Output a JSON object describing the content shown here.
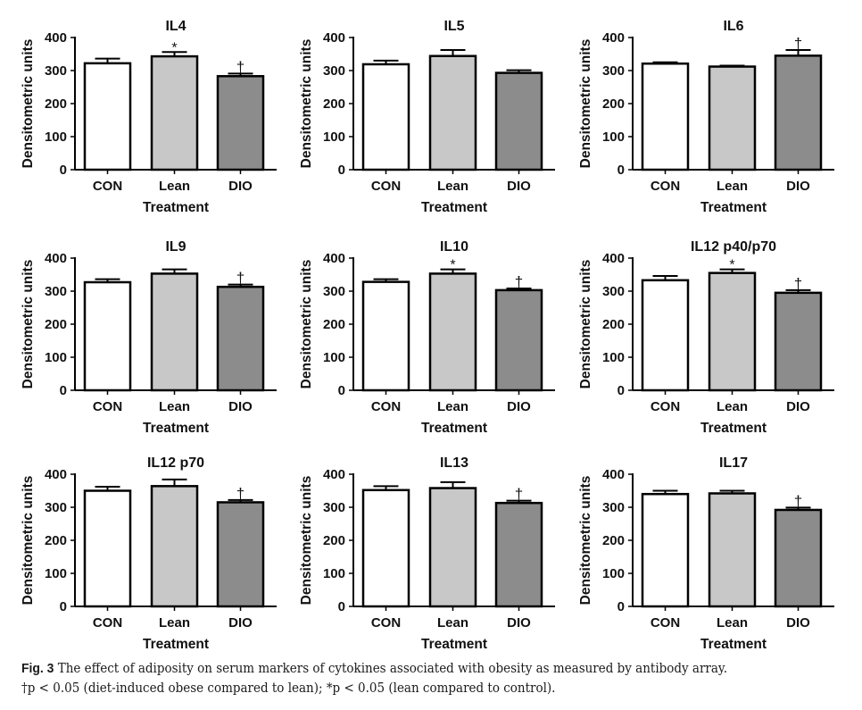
{
  "chart_data": [
    {
      "type": "bar",
      "title": "IL4",
      "categories": [
        "CON",
        "Lean",
        "DIO"
      ],
      "values": [
        322,
        343,
        283
      ],
      "error_upper": [
        336,
        356,
        291
      ],
      "annotations": [
        "",
        "*",
        "†"
      ],
      "xlabel": "Treatment",
      "ylabel": "Densitometric units",
      "ylim": [
        0,
        400
      ],
      "yticks": [
        "0",
        "100",
        "200",
        "300",
        "400"
      ],
      "grid": false
    },
    {
      "type": "bar",
      "title": "IL5",
      "categories": [
        "CON",
        "Lean",
        "DIO"
      ],
      "values": [
        319,
        344,
        293
      ],
      "error_upper": [
        330,
        362,
        301
      ],
      "annotations": [
        "",
        "",
        ""
      ],
      "xlabel": "Treatment",
      "ylabel": "Densitometric units",
      "ylim": [
        0,
        400
      ],
      "yticks": [
        "0",
        "100",
        "200",
        "300",
        "400"
      ],
      "grid": false
    },
    {
      "type": "bar",
      "title": "IL6",
      "categories": [
        "CON",
        "Lean",
        "DIO"
      ],
      "values": [
        321,
        312,
        345
      ],
      "error_upper": [
        325,
        315,
        362
      ],
      "annotations": [
        "",
        "",
        "†"
      ],
      "xlabel": "Treatment",
      "ylabel": "Densitometric units",
      "ylim": [
        0,
        400
      ],
      "yticks": [
        "0",
        "100",
        "200",
        "300",
        "400"
      ],
      "grid": false
    },
    {
      "type": "bar",
      "title": "IL9",
      "categories": [
        "CON",
        "Lean",
        "DIO"
      ],
      "values": [
        327,
        353,
        313
      ],
      "error_upper": [
        336,
        366,
        320
      ],
      "annotations": [
        "",
        "",
        "†"
      ],
      "xlabel": "Treatment",
      "ylabel": "Densitometric units",
      "ylim": [
        0,
        400
      ],
      "yticks": [
        "0",
        "100",
        "200",
        "300",
        "400"
      ],
      "grid": false
    },
    {
      "type": "bar",
      "title": "IL10",
      "categories": [
        "CON",
        "Lean",
        "DIO"
      ],
      "values": [
        328,
        353,
        303
      ],
      "error_upper": [
        336,
        366,
        308
      ],
      "annotations": [
        "",
        "*",
        "†"
      ],
      "xlabel": "Treatment",
      "ylabel": "Densitometric units",
      "ylim": [
        0,
        400
      ],
      "yticks": [
        "0",
        "100",
        "200",
        "300",
        "400"
      ],
      "grid": false
    },
    {
      "type": "bar",
      "title": "IL12 p40/p70",
      "categories": [
        "CON",
        "Lean",
        "DIO"
      ],
      "values": [
        333,
        355,
        295
      ],
      "error_upper": [
        346,
        366,
        303
      ],
      "annotations": [
        "",
        "*",
        "†"
      ],
      "xlabel": "Treatment",
      "ylabel": "Densitometric units",
      "ylim": [
        0,
        400
      ],
      "yticks": [
        "0",
        "100",
        "200",
        "300",
        "400"
      ],
      "grid": false
    },
    {
      "type": "bar",
      "title": "IL12 p70",
      "categories": [
        "CON",
        "Lean",
        "DIO"
      ],
      "values": [
        350,
        364,
        315
      ],
      "error_upper": [
        362,
        384,
        322
      ],
      "annotations": [
        "",
        "",
        "†"
      ],
      "xlabel": "Treatment",
      "ylabel": "Densitometric units",
      "ylim": [
        0,
        400
      ],
      "yticks": [
        "0",
        "100",
        "200",
        "300",
        "400"
      ],
      "grid": false
    },
    {
      "type": "bar",
      "title": "IL13",
      "categories": [
        "CON",
        "Lean",
        "DIO"
      ],
      "values": [
        352,
        358,
        313
      ],
      "error_upper": [
        364,
        376,
        320
      ],
      "annotations": [
        "",
        "",
        "†"
      ],
      "xlabel": "Treatment",
      "ylabel": "Densitometric units",
      "ylim": [
        0,
        400
      ],
      "yticks": [
        "0",
        "100",
        "200",
        "300",
        "400"
      ],
      "grid": false
    },
    {
      "type": "bar",
      "title": "IL17",
      "categories": [
        "CON",
        "Lean",
        "DIO"
      ],
      "values": [
        340,
        342,
        292
      ],
      "error_upper": [
        350,
        350,
        299
      ],
      "annotations": [
        "",
        "",
        "†"
      ],
      "xlabel": "Treatment",
      "ylabel": "Densitometric units",
      "ylim": [
        0,
        400
      ],
      "yticks": [
        "0",
        "100",
        "200",
        "300",
        "400"
      ],
      "grid": false
    }
  ],
  "bar_colors": {
    "CON": "#ffffff",
    "Lean": "#c8c8c8",
    "DIO": "#8c8c8c"
  },
  "caption": {
    "label": "Fig. 3",
    "line1": "The effect of adiposity on serum markers of cytokines associated with obesity as measured by antibody array.",
    "line2": "†p < 0.05 (diet-induced obese compared to lean); *p < 0.05 (lean compared to control)."
  }
}
